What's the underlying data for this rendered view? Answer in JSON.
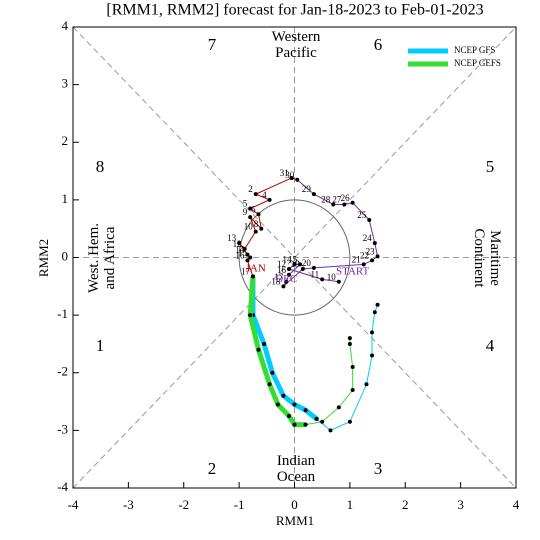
{
  "chart_data": {
    "type": "phase",
    "title": "[RMM1, RMM2] forecast for Jan-18-2023 to Feb-01-2023",
    "x_label": "RMM1",
    "y_label": "RMM2",
    "xlim": [
      -4,
      4
    ],
    "ylim": [
      -4,
      4
    ],
    "xticks": [
      -4,
      -3,
      -2,
      -1,
      0,
      1,
      2,
      3,
      4
    ],
    "yticks": [
      -4,
      -3,
      -2,
      -1,
      0,
      1,
      2,
      3,
      4
    ],
    "phases": [
      "1",
      "2",
      "3",
      "4",
      "5",
      "6",
      "7",
      "8"
    ],
    "regions": [
      "West. Hem. and Africa",
      "Indian Ocean",
      "Maritime Continent",
      "Western Pacific"
    ],
    "annotations": [
      "START",
      "DEC",
      "JAN"
    ],
    "series": [
      {
        "color": "#7030a0",
        "line_width": 1,
        "x": [
          0.8,
          0.5,
          -0.1,
          0.0,
          0.1,
          -0.1,
          -0.15,
          -0.2,
          0.15,
          0.35,
          1.25,
          1.4,
          1.5,
          1.45,
          1.35,
          1.05,
          0.9,
          0.7,
          0.35,
          0.05,
          -0.05
        ],
        "y": [
          -0.42,
          -0.38,
          -0.2,
          -0.12,
          -0.12,
          -0.3,
          -0.42,
          -0.5,
          -0.2,
          -0.18,
          -0.12,
          -0.05,
          0.02,
          0.25,
          0.65,
          0.95,
          0.92,
          0.92,
          1.1,
          1.35,
          1.38
        ],
        "labels": [
          "10",
          "11",
          "12",
          "14",
          "15",
          "16",
          "17",
          "18",
          "19",
          "20",
          "21",
          "22",
          "23",
          "24",
          "25",
          "26",
          "27",
          "28",
          "29",
          "30",
          "31"
        ]
      },
      {
        "color": "#c00000",
        "line_width": 1,
        "x": [
          -0.05,
          -0.7,
          -0.45,
          -0.8,
          -0.65,
          -0.6,
          -0.8,
          -0.7,
          -0.9,
          -1.0,
          -0.85,
          -0.8,
          -0.85,
          -0.75
        ],
        "y": [
          1.38,
          1.1,
          1.0,
          0.85,
          0.75,
          0.5,
          0.7,
          0.45,
          0.15,
          0.25,
          0.05,
          0.0,
          -0.05,
          -0.33
        ],
        "labels": [
          null,
          "2",
          "4",
          "5",
          "6",
          "8",
          "9",
          "10",
          "12",
          "13",
          "14",
          "15",
          "16",
          "17"
        ]
      },
      {
        "name": "NCEP GFS",
        "color": "#00ccff",
        "line_width": 5,
        "x": [
          -0.75,
          -0.75,
          -0.55,
          -0.4,
          -0.2,
          0.0,
          0.2,
          0.4
        ],
        "y": [
          -0.33,
          -1.0,
          -1.5,
          -2.0,
          -2.4,
          -2.55,
          -2.65,
          -2.8
        ]
      },
      {
        "color": "#00ccff",
        "line_width": 1,
        "x": [
          0.4,
          0.65,
          1.0,
          1.3,
          1.4,
          1.4,
          1.45,
          1.5
        ],
        "y": [
          -2.8,
          -3.0,
          -2.85,
          -2.2,
          -1.7,
          -1.3,
          -0.95,
          -0.82
        ]
      },
      {
        "name": "NCEP GEFS",
        "color": "#33dd33",
        "line_width": 5,
        "x": [
          -0.75,
          -0.8,
          -0.65,
          -0.45,
          -0.3,
          -0.1,
          0.0,
          0.2
        ],
        "y": [
          -0.33,
          -1.0,
          -1.6,
          -2.2,
          -2.55,
          -2.75,
          -2.9,
          -2.9
        ]
      },
      {
        "color": "#33dd33",
        "line_width": 1,
        "x": [
          0.2,
          0.5,
          0.8,
          1.05,
          1.05,
          1.0,
          1.0
        ],
        "y": [
          -2.9,
          -2.85,
          -2.6,
          -2.3,
          -1.9,
          -1.5,
          -1.4
        ]
      }
    ]
  }
}
